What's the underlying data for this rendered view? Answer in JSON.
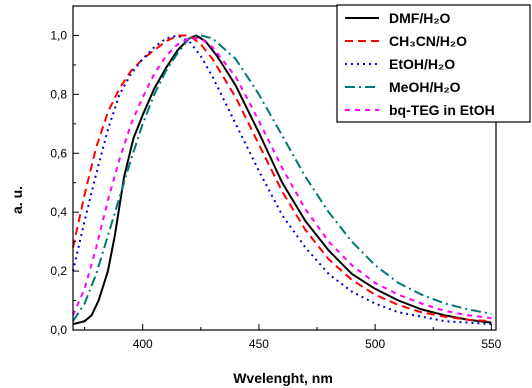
{
  "chart_data": {
    "type": "line",
    "xlabel": "Wvelenght, nm",
    "ylabel": "a. u.",
    "xlim": [
      370,
      552
    ],
    "ylim": [
      0,
      1.1
    ],
    "x_ticks": [
      "400",
      "450",
      "500",
      "550"
    ],
    "y_ticks": [
      "0,0",
      "0,2",
      "0,4",
      "0,6",
      "0,8",
      "1,0"
    ],
    "legend_position": "top-right",
    "grid": false,
    "series": [
      {
        "name": "DMF/H₂O",
        "color": "#000000",
        "dash": "solid",
        "points": [
          [
            370,
            0.02
          ],
          [
            375,
            0.03
          ],
          [
            378,
            0.05
          ],
          [
            381,
            0.1
          ],
          [
            385,
            0.2
          ],
          [
            388,
            0.32
          ],
          [
            392,
            0.52
          ],
          [
            396,
            0.65
          ],
          [
            400,
            0.73
          ],
          [
            405,
            0.82
          ],
          [
            410,
            0.89
          ],
          [
            415,
            0.95
          ],
          [
            420,
            0.99
          ],
          [
            423,
            1.0
          ],
          [
            427,
            0.98
          ],
          [
            432,
            0.93
          ],
          [
            440,
            0.83
          ],
          [
            450,
            0.67
          ],
          [
            460,
            0.5
          ],
          [
            470,
            0.37
          ],
          [
            480,
            0.27
          ],
          [
            490,
            0.19
          ],
          [
            500,
            0.14
          ],
          [
            510,
            0.1
          ],
          [
            520,
            0.07
          ],
          [
            530,
            0.05
          ],
          [
            540,
            0.035
          ],
          [
            550,
            0.025
          ]
        ]
      },
      {
        "name": "CH₃CN/H₂O",
        "color": "#ff0000",
        "dash": "8,5",
        "points": [
          [
            370,
            0.28
          ],
          [
            375,
            0.46
          ],
          [
            380,
            0.62
          ],
          [
            385,
            0.74
          ],
          [
            390,
            0.82
          ],
          [
            395,
            0.88
          ],
          [
            400,
            0.92
          ],
          [
            405,
            0.95
          ],
          [
            410,
            0.98
          ],
          [
            415,
            1.0
          ],
          [
            420,
            1.0
          ],
          [
            425,
            0.97
          ],
          [
            430,
            0.92
          ],
          [
            440,
            0.79
          ],
          [
            450,
            0.63
          ],
          [
            460,
            0.47
          ],
          [
            470,
            0.34
          ],
          [
            480,
            0.24
          ],
          [
            490,
            0.17
          ],
          [
            500,
            0.12
          ],
          [
            510,
            0.085
          ],
          [
            520,
            0.06
          ],
          [
            530,
            0.045
          ],
          [
            540,
            0.035
          ],
          [
            550,
            0.03
          ]
        ]
      },
      {
        "name": "EtOH/H₂O",
        "color": "#0000cc",
        "dash": "2,4",
        "points": [
          [
            370,
            0.2
          ],
          [
            375,
            0.37
          ],
          [
            380,
            0.53
          ],
          [
            385,
            0.68
          ],
          [
            390,
            0.8
          ],
          [
            395,
            0.87
          ],
          [
            400,
            0.92
          ],
          [
            405,
            0.96
          ],
          [
            410,
            0.99
          ],
          [
            415,
            1.0
          ],
          [
            420,
            0.98
          ],
          [
            425,
            0.93
          ],
          [
            430,
            0.86
          ],
          [
            440,
            0.7
          ],
          [
            450,
            0.54
          ],
          [
            460,
            0.39
          ],
          [
            470,
            0.28
          ],
          [
            480,
            0.19
          ],
          [
            490,
            0.13
          ],
          [
            500,
            0.09
          ],
          [
            510,
            0.06
          ],
          [
            520,
            0.045
          ],
          [
            530,
            0.03
          ],
          [
            540,
            0.025
          ],
          [
            550,
            0.02
          ]
        ]
      },
      {
        "name": "MeOH/H₂O",
        "color": "#007777",
        "dash": "10,4,2,4",
        "points": [
          [
            370,
            0.03
          ],
          [
            375,
            0.09
          ],
          [
            380,
            0.19
          ],
          [
            385,
            0.32
          ],
          [
            390,
            0.45
          ],
          [
            395,
            0.58
          ],
          [
            400,
            0.7
          ],
          [
            405,
            0.8
          ],
          [
            410,
            0.88
          ],
          [
            415,
            0.94
          ],
          [
            420,
            0.99
          ],
          [
            425,
            1.0
          ],
          [
            430,
            0.99
          ],
          [
            440,
            0.92
          ],
          [
            450,
            0.8
          ],
          [
            460,
            0.66
          ],
          [
            470,
            0.52
          ],
          [
            480,
            0.4
          ],
          [
            490,
            0.3
          ],
          [
            500,
            0.22
          ],
          [
            510,
            0.16
          ],
          [
            520,
            0.12
          ],
          [
            530,
            0.09
          ],
          [
            540,
            0.07
          ],
          [
            550,
            0.055
          ]
        ]
      },
      {
        "name": "bq-TEG in EtOH",
        "color": "#ff00ff",
        "dash": "5,5",
        "points": [
          [
            370,
            0.05
          ],
          [
            375,
            0.14
          ],
          [
            380,
            0.28
          ],
          [
            385,
            0.44
          ],
          [
            390,
            0.58
          ],
          [
            395,
            0.7
          ],
          [
            400,
            0.79
          ],
          [
            405,
            0.87
          ],
          [
            410,
            0.93
          ],
          [
            415,
            0.97
          ],
          [
            420,
            0.99
          ],
          [
            425,
            0.99
          ],
          [
            430,
            0.96
          ],
          [
            440,
            0.86
          ],
          [
            450,
            0.71
          ],
          [
            460,
            0.55
          ],
          [
            470,
            0.41
          ],
          [
            480,
            0.3
          ],
          [
            490,
            0.22
          ],
          [
            500,
            0.16
          ],
          [
            510,
            0.12
          ],
          [
            520,
            0.09
          ],
          [
            530,
            0.065
          ],
          [
            540,
            0.05
          ],
          [
            550,
            0.04
          ]
        ]
      }
    ]
  }
}
